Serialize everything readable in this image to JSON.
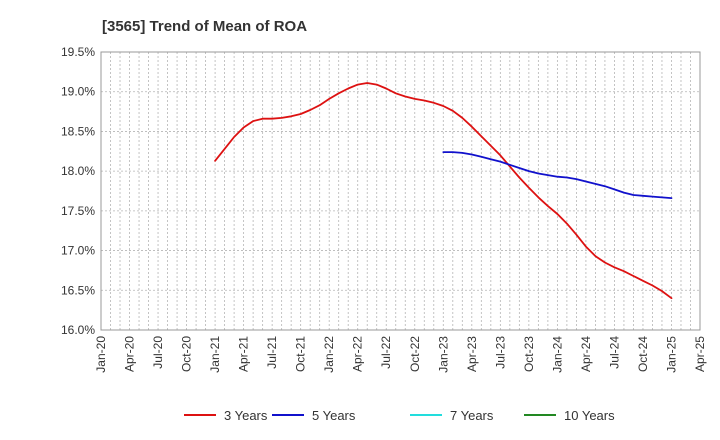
{
  "chart_data": {
    "type": "line",
    "title": "[3565]  Trend of Mean of ROA",
    "xlabel": "",
    "ylabel": "",
    "ylim": [
      16.0,
      19.5
    ],
    "y_ticks": [
      "16.0%",
      "16.5%",
      "17.0%",
      "17.5%",
      "18.0%",
      "18.5%",
      "19.0%",
      "19.5%"
    ],
    "x_range": [
      "2020-01",
      "2025-04"
    ],
    "x_ticks": [
      "Jan-20",
      "Apr-20",
      "Jul-20",
      "Oct-20",
      "Jan-21",
      "Apr-21",
      "Jul-21",
      "Oct-21",
      "Jan-22",
      "Apr-22",
      "Jul-22",
      "Oct-22",
      "Jan-23",
      "Apr-23",
      "Jul-23",
      "Oct-23",
      "Jan-24",
      "Apr-24",
      "Jul-24",
      "Oct-24",
      "Jan-25",
      "Apr-25"
    ],
    "grid": true,
    "legend_position": "bottom",
    "series": [
      {
        "name": "3 Years",
        "color": "#dd1111",
        "x": [
          "2021-01",
          "2021-02",
          "2021-03",
          "2021-04",
          "2021-05",
          "2021-06",
          "2021-07",
          "2021-08",
          "2021-09",
          "2021-10",
          "2021-11",
          "2021-12",
          "2022-01",
          "2022-02",
          "2022-03",
          "2022-04",
          "2022-05",
          "2022-06",
          "2022-07",
          "2022-08",
          "2022-09",
          "2022-10",
          "2022-11",
          "2022-12",
          "2023-01",
          "2023-02",
          "2023-03",
          "2023-04",
          "2023-05",
          "2023-06",
          "2023-07",
          "2023-08",
          "2023-09",
          "2023-10",
          "2023-11",
          "2023-12",
          "2024-01",
          "2024-02",
          "2024-03",
          "2024-04",
          "2024-05",
          "2024-06",
          "2024-07",
          "2024-08",
          "2024-09",
          "2024-10",
          "2024-11",
          "2024-12",
          "2025-01"
        ],
        "y": [
          18.13,
          18.28,
          18.43,
          18.55,
          18.63,
          18.66,
          18.66,
          18.67,
          18.69,
          18.72,
          18.77,
          18.83,
          18.91,
          18.98,
          19.04,
          19.09,
          19.11,
          19.09,
          19.04,
          18.98,
          18.94,
          18.91,
          18.89,
          18.86,
          18.82,
          18.76,
          18.67,
          18.56,
          18.44,
          18.32,
          18.2,
          18.06,
          17.92,
          17.79,
          17.67,
          17.56,
          17.46,
          17.34,
          17.2,
          17.05,
          16.93,
          16.85,
          16.79,
          16.74,
          16.68,
          16.62,
          16.56,
          16.49,
          16.4
        ]
      },
      {
        "name": "5 Years",
        "color": "#1111cc",
        "x": [
          "2023-01",
          "2023-02",
          "2023-03",
          "2023-04",
          "2023-05",
          "2023-06",
          "2023-07",
          "2023-08",
          "2023-09",
          "2023-10",
          "2023-11",
          "2023-12",
          "2024-01",
          "2024-02",
          "2024-03",
          "2024-04",
          "2024-05",
          "2024-06",
          "2024-07",
          "2024-08",
          "2024-09",
          "2024-10",
          "2024-11",
          "2024-12",
          "2025-01"
        ],
        "y": [
          18.24,
          18.24,
          18.23,
          18.21,
          18.18,
          18.15,
          18.12,
          18.08,
          18.04,
          18.0,
          17.97,
          17.95,
          17.93,
          17.92,
          17.9,
          17.87,
          17.84,
          17.81,
          17.77,
          17.73,
          17.7,
          17.69,
          17.68,
          17.67,
          17.66
        ]
      },
      {
        "name": "7 Years",
        "color": "#22dddd",
        "x": [],
        "y": []
      },
      {
        "name": "10 Years",
        "color": "#228822",
        "x": [],
        "y": []
      }
    ]
  }
}
